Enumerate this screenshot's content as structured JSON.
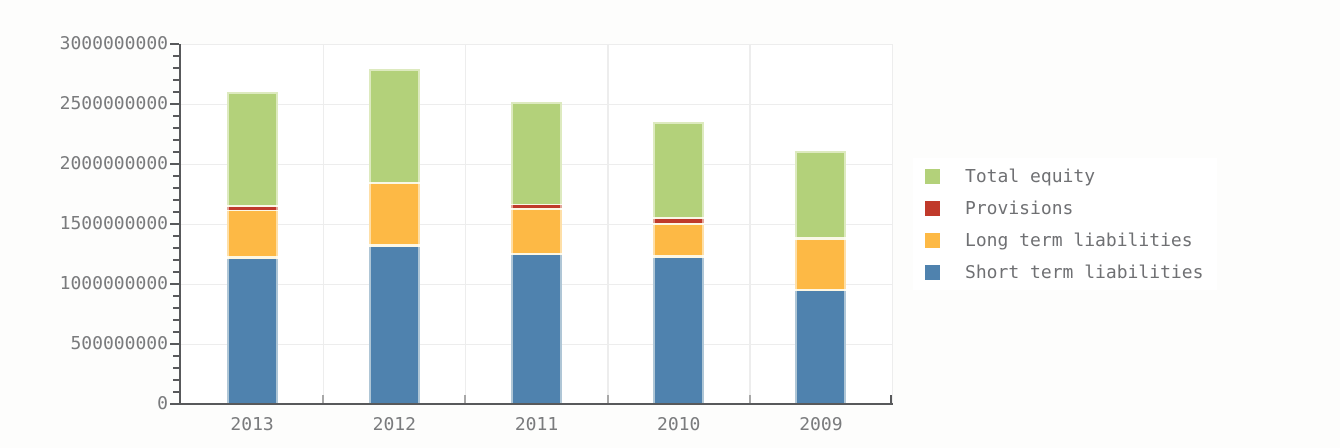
{
  "chart_data": {
    "type": "bar",
    "stacked": true,
    "orientation": "vertical",
    "categories": [
      "2013",
      "2012",
      "2011",
      "2010",
      "2009"
    ],
    "series": [
      {
        "name": "Short term liabilities",
        "color": "#4f82ae",
        "values": [
          1210000000,
          1310000000,
          1240000000,
          1220000000,
          940000000
        ]
      },
      {
        "name": "Long term liabilities",
        "color": "#fdb945",
        "values": [
          410000000,
          520000000,
          390000000,
          290000000,
          430000000
        ]
      },
      {
        "name": "Provisions",
        "color": "#c03a2b",
        "values": [
          20000000,
          0,
          20000000,
          30000000,
          0
        ]
      },
      {
        "name": "Total equity",
        "color": "#b3d17a",
        "values": [
          960000000,
          960000000,
          870000000,
          810000000,
          740000000
        ]
      }
    ],
    "totals": [
      2600000000,
      2790000000,
      2520000000,
      2350000000,
      2110000000
    ],
    "ylim": [
      0,
      3000000000
    ],
    "ytick_interval": 500000000,
    "minor_tick_interval": 100000000,
    "ytick_labels": [
      "3000000000",
      "2500000000",
      "2000000000",
      "1500000000",
      "1000000000",
      "500000000",
      "0"
    ],
    "grid": true,
    "legend_position": "right",
    "legend": [
      {
        "label": "Total equity",
        "color": "#b3d17a"
      },
      {
        "label": "Provisions",
        "color": "#c03a2b"
      },
      {
        "label": "Long term liabilities",
        "color": "#fdb945"
      },
      {
        "label": "Short term liabilities",
        "color": "#4f82ae"
      }
    ]
  },
  "colors": {
    "page_bg": "#fdfdfc",
    "plot_bg": "#ffffff",
    "axis": "#58595b",
    "grid": "#ededed",
    "tick_label": "#7a7b7d",
    "legend_text": "#6f7073",
    "category_tick": "#a8a8a8",
    "segment_separator": "#fdfaec"
  }
}
